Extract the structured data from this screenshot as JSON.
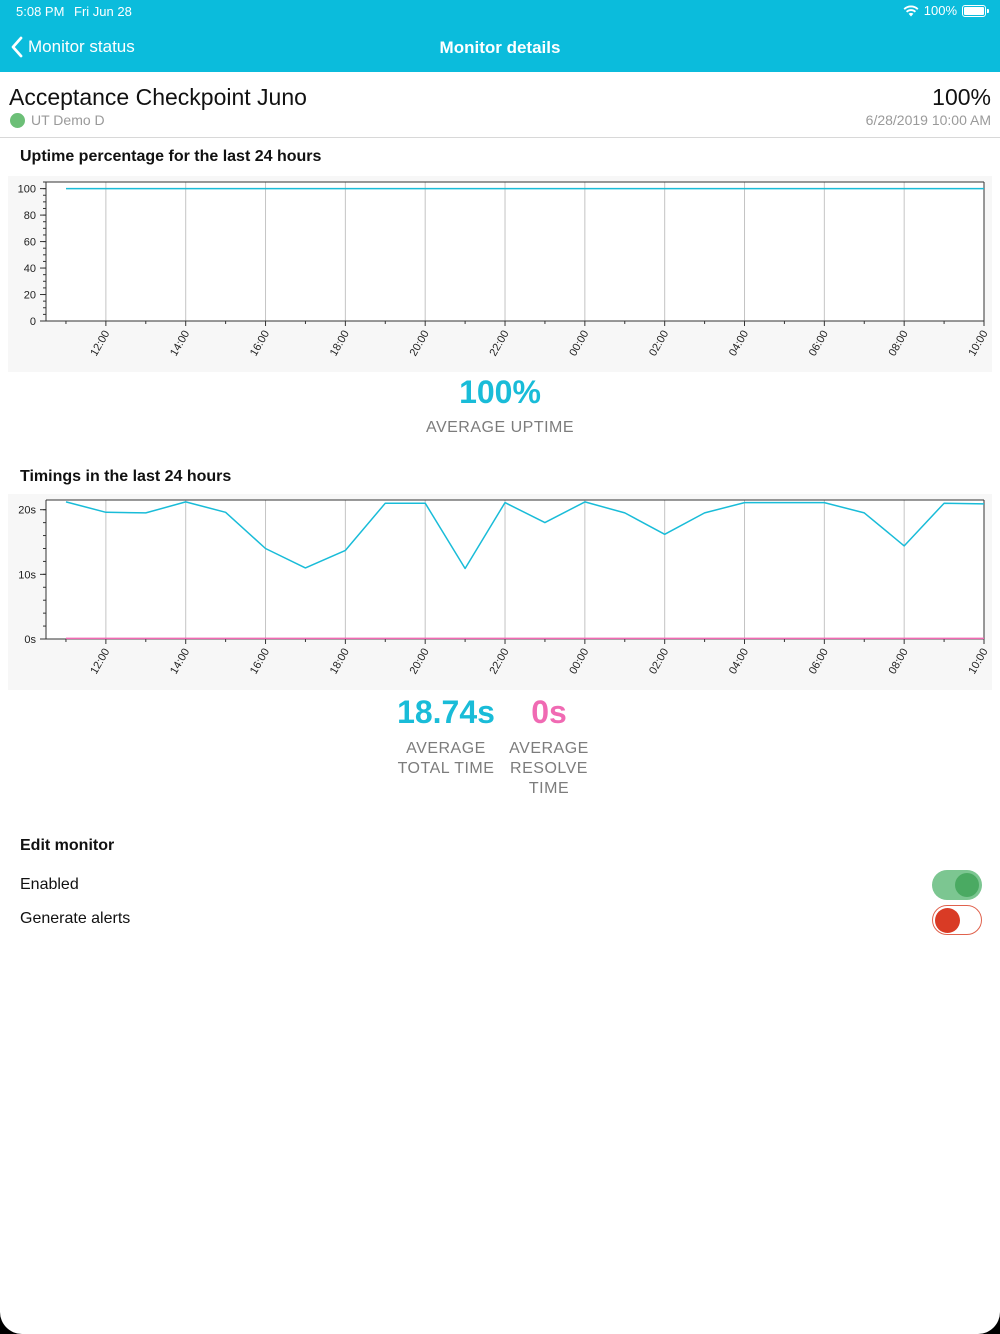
{
  "status_bar": {
    "time": "5:08 PM",
    "date": "Fri Jun 28",
    "battery": "100%"
  },
  "nav": {
    "back_label": "Monitor status",
    "title": "Monitor details"
  },
  "monitor": {
    "name": "Acceptance Checkpoint Juno",
    "location": "UT Demo D",
    "status_color": "#6cbf77",
    "uptime": "100%",
    "updated": "6/28/2019 10:00 AM"
  },
  "uptime_section": {
    "title": "Uptime percentage for the last 24 hours",
    "value": "100%",
    "label": "AVERAGE UPTIME"
  },
  "timings_section": {
    "title": "Timings in the last 24 hours",
    "total_value": "18.74s",
    "total_label_1": "AVERAGE",
    "total_label_2": "TOTAL TIME",
    "resolve_value": "0s",
    "resolve_label_1": "AVERAGE",
    "resolve_label_2": "RESOLVE",
    "resolve_label_3": "TIME"
  },
  "edit": {
    "title": "Edit monitor",
    "enabled_label": "Enabled",
    "enabled": true,
    "alerts_label": "Generate alerts",
    "alerts": false
  },
  "colors": {
    "accent": "#0bbcdc",
    "series_total": "#19bcd8",
    "series_resolve": "#f06ab3",
    "enabled_on": "#4aaa62",
    "alerts_off": "#d93b25"
  },
  "chart_data": [
    {
      "type": "line",
      "title": "Uptime percentage for the last 24 hours",
      "x_tick_labels": [
        "12:00",
        "14:00",
        "16:00",
        "18:00",
        "20:00",
        "22:00",
        "00:00",
        "02:00",
        "04:00",
        "06:00",
        "08:00",
        "10:00"
      ],
      "y_tick_labels": [
        "0",
        "20",
        "40",
        "60",
        "80",
        "100"
      ],
      "ylim": [
        0,
        105
      ],
      "grid": "vertical",
      "x_hours": [
        11,
        12,
        13,
        14,
        15,
        16,
        17,
        18,
        19,
        20,
        21,
        22,
        23,
        24,
        25,
        26,
        27,
        28,
        29,
        30,
        31,
        32,
        33,
        34
      ],
      "series": [
        {
          "values": [
            100,
            100,
            100,
            100,
            100,
            100,
            100,
            100,
            100,
            100,
            100,
            100,
            100,
            100,
            100,
            100,
            100,
            100,
            100,
            100,
            100,
            100,
            100,
            100
          ]
        }
      ]
    },
    {
      "type": "line",
      "title": "Timings in the last 24 hours",
      "x_tick_labels": [
        "12:00",
        "14:00",
        "16:00",
        "18:00",
        "20:00",
        "22:00",
        "00:00",
        "02:00",
        "04:00",
        "06:00",
        "08:00",
        "10:00"
      ],
      "y_tick_labels": [
        "0s",
        "10s",
        "20s"
      ],
      "ylim": [
        0,
        21.5
      ],
      "grid": "vertical",
      "x_hours": [
        11,
        12,
        13,
        14,
        15,
        16,
        17,
        18,
        19,
        20,
        21,
        22,
        23,
        24,
        25,
        26,
        27,
        28,
        29,
        30,
        31,
        32,
        33,
        34
      ],
      "series": [
        {
          "values": [
            21.2,
            19.6,
            19.5,
            21.2,
            19.6,
            14.0,
            11.0,
            13.7,
            21.0,
            21.0,
            10.9,
            21.1,
            18.0,
            21.2,
            19.5,
            16.2,
            19.5,
            21.1,
            21.1,
            21.1,
            19.5,
            14.4,
            21.0,
            20.9
          ]
        },
        {
          "values": [
            0.1,
            0.1,
            0.1,
            0.1,
            0.1,
            0.1,
            0.1,
            0.1,
            0.1,
            0.1,
            0.1,
            0.1,
            0.1,
            0.1,
            0.1,
            0.1,
            0.1,
            0.1,
            0.1,
            0.1,
            0.1,
            0.1,
            0.1,
            0.1
          ]
        }
      ]
    }
  ]
}
